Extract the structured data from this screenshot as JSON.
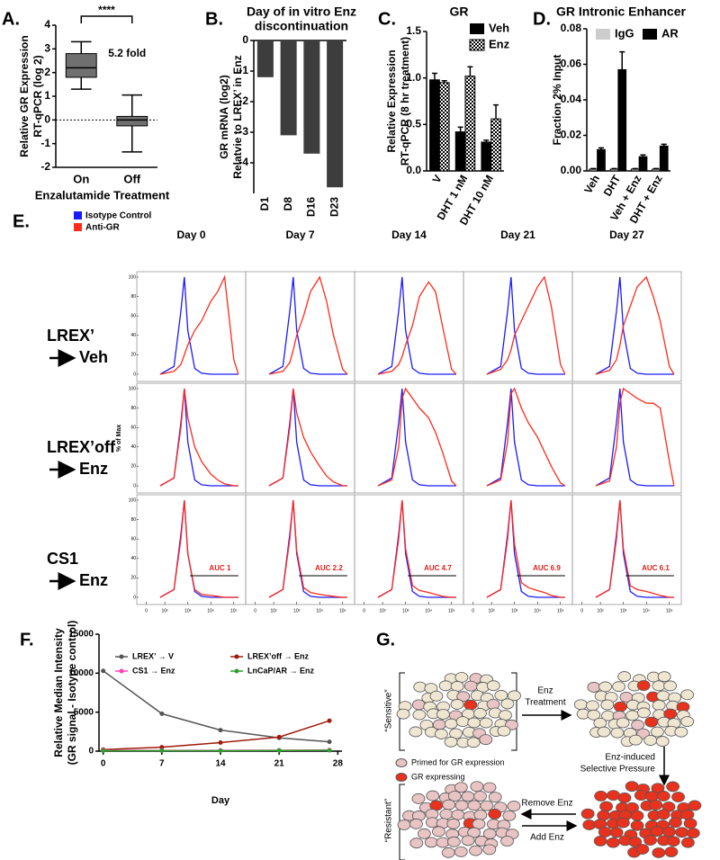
{
  "chart_data": [
    {
      "type": "box",
      "panel": "A.",
      "categories": [
        "On",
        "Off"
      ],
      "values": [
        {
          "min": 1.3,
          "q1": 1.8,
          "median": 2.2,
          "q3": 2.8,
          "max": 3.3
        },
        {
          "min": -1.35,
          "q1": -0.25,
          "median": 0,
          "q3": 0.15,
          "max": 1.05
        }
      ],
      "color": "#707070",
      "ylim": [
        -2,
        4
      ],
      "yticks": [
        -2,
        -1,
        0,
        1,
        2,
        3,
        4
      ],
      "ylabel": [
        "Relative GR Expression",
        "RT-qPCR (log 2)"
      ],
      "xlabel": "Enzalutamide Treatment",
      "annotations": [
        "****",
        "5.2 fold"
      ]
    },
    {
      "type": "bar",
      "panel": "B.",
      "title": [
        "Day of in vitro Enz",
        "discontinuation"
      ],
      "categories": [
        "D1",
        "D8",
        "D16",
        "D23"
      ],
      "values": [
        -1.2,
        -3.1,
        -3.7,
        -4.8
      ],
      "color": "#3d3d3d",
      "ylim": [
        -5,
        0
      ],
      "yticks": [
        0,
        -1,
        -2,
        -3,
        -4
      ],
      "ylabel": [
        "GR mRNA (log2)",
        "Relatvie to LREX’ in Enz"
      ]
    },
    {
      "type": "bar",
      "panel": "C.",
      "title": [
        "GR"
      ],
      "categories": [
        "V",
        "DHT 1 nM",
        "DHT 10 nM"
      ],
      "series": [
        {
          "name": "Veh",
          "color": "#000000",
          "values": [
            0.98,
            0.42,
            0.31
          ],
          "errors": [
            0.07,
            0.05,
            0.02
          ]
        },
        {
          "name": "Enz",
          "color": "#ffffff",
          "pattern": "checker",
          "values": [
            0.95,
            1.02,
            0.56
          ],
          "errors": [
            0.02,
            0.1,
            0.15
          ]
        }
      ],
      "ylim": [
        0,
        1.5
      ],
      "yticks": [
        {
          "value": 0,
          "label": "0.0"
        },
        0.5,
        {
          "value": 1,
          "label": "1.0"
        },
        1.5
      ],
      "ylabel": [
        "Relative Expression",
        "RT-qPCR (8 hr treatment)"
      ]
    },
    {
      "type": "bar",
      "panel": "D.",
      "title": [
        "GR Intronic Enhancer"
      ],
      "categories": [
        "Veh",
        "DHT",
        "Veh + Enz",
        "DHT + Enz"
      ],
      "series": [
        {
          "name": "IgG",
          "color": "#cccccc",
          "values": [
            0.001,
            0.001,
            0.001,
            0.001
          ],
          "errors": [
            0.0003,
            0.0003,
            0.0003,
            0.0003
          ]
        },
        {
          "name": "AR",
          "color": "#000000",
          "values": [
            0.012,
            0.057,
            0.008,
            0.014
          ],
          "errors": [
            0.001,
            0.01,
            0.001,
            0.001
          ]
        }
      ],
      "ylim": [
        0,
        0.08
      ],
      "yticks": [
        {
          "value": 0,
          "label": "0.00"
        },
        {
          "value": 0.02,
          "label": "0.02"
        },
        {
          "value": 0.04,
          "label": "0.04"
        },
        {
          "value": 0.06,
          "label": "0.06"
        },
        {
          "value": 0.08,
          "label": "0.08"
        }
      ],
      "ylabel": [
        "Fraction 2% Input"
      ]
    },
    {
      "type": "facet",
      "panel": "E.",
      "columns": [
        "Day 0",
        "Day 7",
        "Day 14",
        "Day 21",
        "Day 27"
      ],
      "series": [
        {
          "name": "Isotype Control",
          "color": "#1a1aff"
        },
        {
          "name": "Anti-GR",
          "color": "#ff2a1a"
        }
      ],
      "ylabel": "% of Max",
      "x": [
        1.8,
        2.4,
        2.7,
        2.85,
        3.0,
        3.3,
        3.6,
        4.0,
        4.3,
        4.6,
        5.0,
        5.2
      ],
      "xlim": [
        0.9,
        5.4
      ],
      "xticks": [
        {
          "value": 1.2,
          "label": "0"
        },
        {
          "value": 2,
          "label": "10²"
        },
        {
          "value": 3,
          "label": "10³"
        },
        {
          "value": 4,
          "label": "10⁴"
        },
        {
          "value": 5,
          "label": "10⁵"
        }
      ],
      "ylim": [
        0,
        100
      ],
      "yticks": [
        0,
        20,
        40,
        60,
        80,
        100
      ],
      "rows": [
        {
          "label": "LREX’",
          "treatment": "Veh",
          "isotype": [
            [
              0,
              8,
              65,
              100,
              45,
              6,
              1,
              0,
              0,
              0,
              0,
              0
            ],
            [
              0,
              8,
              65,
              100,
              45,
              6,
              1,
              0,
              0,
              0,
              0,
              0
            ],
            [
              0,
              8,
              65,
              100,
              45,
              6,
              1,
              0,
              0,
              0,
              0,
              0
            ],
            [
              0,
              8,
              65,
              100,
              45,
              6,
              1,
              0,
              0,
              0,
              0,
              0
            ],
            [
              0,
              8,
              65,
              100,
              45,
              6,
              1,
              0,
              0,
              0,
              0,
              0
            ]
          ],
          "anti_gr": [
            [
              0,
              3,
              10,
              20,
              30,
              45,
              55,
              75,
              85,
              100,
              15,
              0
            ],
            [
              0,
              3,
              12,
              25,
              40,
              60,
              85,
              100,
              75,
              40,
              5,
              0
            ],
            [
              0,
              3,
              10,
              18,
              30,
              50,
              80,
              95,
              85,
              50,
              5,
              0
            ],
            [
              0,
              5,
              15,
              25,
              40,
              55,
              70,
              90,
              100,
              70,
              10,
              0
            ],
            [
              0,
              4,
              15,
              30,
              50,
              70,
              90,
              100,
              80,
              55,
              8,
              0
            ]
          ]
        },
        {
          "label": "LREX’off",
          "treatment": "Enz",
          "isotype": [
            [
              0,
              8,
              65,
              100,
              45,
              6,
              1,
              0,
              0,
              0,
              0,
              0
            ],
            [
              0,
              8,
              65,
              100,
              45,
              6,
              1,
              0,
              0,
              0,
              0,
              0
            ],
            [
              0,
              8,
              65,
              100,
              45,
              6,
              1,
              0,
              0,
              0,
              0,
              0
            ],
            [
              0,
              8,
              65,
              100,
              45,
              6,
              1,
              0,
              0,
              0,
              0,
              0
            ],
            [
              0,
              8,
              65,
              100,
              45,
              6,
              1,
              0,
              0,
              0,
              0,
              0
            ]
          ],
          "anti_gr": [
            [
              0,
              8,
              60,
              100,
              70,
              40,
              25,
              12,
              6,
              2,
              0,
              0
            ],
            [
              0,
              8,
              60,
              100,
              75,
              50,
              35,
              20,
              10,
              4,
              0,
              0
            ],
            [
              0,
              6,
              40,
              90,
              100,
              90,
              80,
              70,
              55,
              35,
              5,
              0
            ],
            [
              0,
              6,
              45,
              95,
              100,
              80,
              65,
              50,
              35,
              20,
              3,
              0
            ],
            [
              0,
              5,
              40,
              85,
              100,
              95,
              90,
              85,
              85,
              80,
              25,
              0
            ]
          ]
        },
        {
          "label": "CS1",
          "treatment": "Enz",
          "auc": [
            "AUC 1",
            "AUC 2.2",
            "AUC 4.7",
            "AUC 6.9",
            "AUC 6.1"
          ],
          "isotype": [
            [
              0,
              8,
              65,
              100,
              45,
              6,
              1,
              0,
              0,
              0,
              0,
              0
            ],
            [
              0,
              8,
              65,
              100,
              45,
              6,
              1,
              0,
              0,
              0,
              0,
              0
            ],
            [
              0,
              8,
              65,
              100,
              45,
              6,
              1,
              0,
              0,
              0,
              0,
              0
            ],
            [
              0,
              8,
              65,
              100,
              45,
              6,
              1,
              0,
              0,
              0,
              0,
              0
            ],
            [
              0,
              8,
              65,
              100,
              45,
              6,
              1,
              0,
              0,
              0,
              0,
              0
            ]
          ],
          "anti_gr": [
            [
              0,
              8,
              60,
              100,
              45,
              8,
              3,
              2,
              1,
              0,
              0,
              0
            ],
            [
              0,
              8,
              60,
              100,
              48,
              10,
              5,
              3,
              2,
              1,
              0,
              0
            ],
            [
              0,
              8,
              60,
              100,
              50,
              12,
              7,
              5,
              3,
              1,
              0,
              0
            ],
            [
              0,
              8,
              60,
              100,
              55,
              15,
              10,
              7,
              5,
              2,
              0,
              0
            ],
            [
              0,
              8,
              60,
              100,
              50,
              12,
              8,
              6,
              4,
              2,
              0,
              0
            ]
          ]
        }
      ]
    },
    {
      "type": "line",
      "panel": "F.",
      "x": [
        0,
        7,
        14,
        21,
        27
      ],
      "series": [
        {
          "name": "LREX’ → V",
          "color": "#555555",
          "values": [
            10300,
            4800,
            2700,
            1700,
            1200
          ]
        },
        {
          "name": "LREX’off → Enz",
          "color": "#a01a0a",
          "values": [
            200,
            500,
            1100,
            1800,
            3900
          ]
        },
        {
          "name": "CS1 → Enz",
          "color": "#ff3fb4",
          "values": [
            100,
            80,
            100,
            120,
            150
          ]
        },
        {
          "name": "LnCaP/AR → Enz",
          "color": "#2ca02c",
          "values": [
            50,
            60,
            60,
            80,
            100
          ]
        }
      ],
      "xlim": [
        -0.5,
        28.5
      ],
      "xticks": [
        0,
        7,
        14,
        21,
        28
      ],
      "ylim": [
        0,
        15000
      ],
      "yticks": [
        0,
        5000,
        10000,
        15000
      ],
      "ylabel": [
        "Relative Median Intensity",
        "(GR signal - Isotype control)"
      ],
      "xlabel": "Day"
    }
  ],
  "diagram": {
    "panel": "G.",
    "sensitive": "“Sensitive”",
    "resistant": "“Resistant”",
    "treatment": [
      "Enz",
      "Treatment"
    ],
    "pressure": [
      "Enz-induced",
      "Selective Pressure"
    ],
    "remove": "Remove Enz",
    "add": "Add Enz",
    "legend": [
      "Primed for GR expression",
      "GR expressing"
    ]
  }
}
